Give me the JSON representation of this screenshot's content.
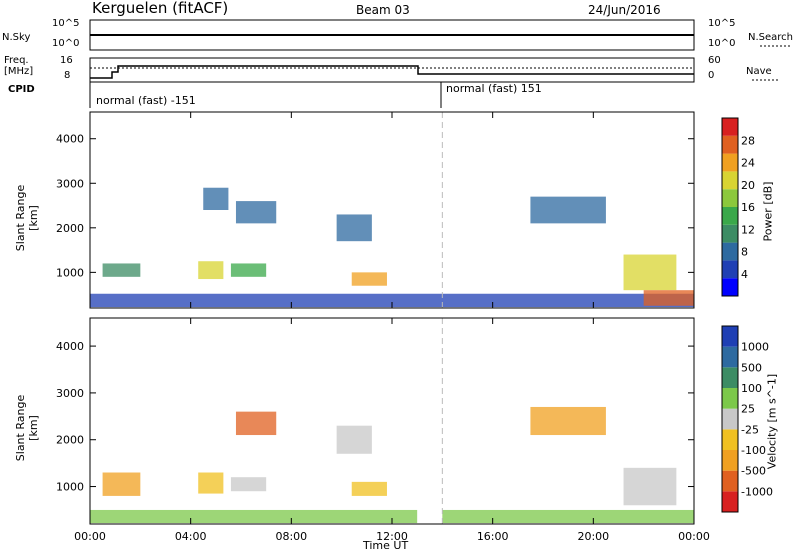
{
  "header": {
    "station": "Kerguelen (fitACF)",
    "beam": "Beam 03",
    "date": "24/Jun/2016"
  },
  "panels": {
    "nsky_label": "N.Sky",
    "nsearch_label": "N.Search",
    "nsky_ticks": [
      "10^5",
      "10^0"
    ],
    "nsearch_ticks": [
      "10^5",
      "10^0"
    ],
    "freq_label": "Freq.",
    "freq_unit": "[MHz]",
    "freq_ticks": [
      "16",
      "8"
    ],
    "nave_label": "Nave",
    "nave_ticks": [
      "60",
      "0"
    ],
    "cpid_label": "CPID",
    "cpid_segments": [
      "normal (fast) -151",
      "normal (fast) 151"
    ]
  },
  "chart_data": [
    {
      "type": "heatmap",
      "title": "",
      "ylabel": "Slant Range [km]",
      "xlabel": "",
      "x_ticks": [
        "00:00",
        "04:00",
        "08:00",
        "12:00",
        "16:00",
        "20:00",
        "00:00"
      ],
      "y_ticks": [
        1000,
        2000,
        3000,
        4000
      ],
      "ylim": [
        200,
        4600
      ],
      "xlim_hours": [
        0,
        24
      ],
      "colorbar": {
        "label": "Power [dB]",
        "ticks": [
          4,
          8,
          12,
          16,
          20,
          24,
          28
        ],
        "range": [
          0,
          32
        ],
        "colors": [
          "#0000ff",
          "#1f3fb4",
          "#2e6aa0",
          "#3c8c64",
          "#3aa84a",
          "#8cc83c",
          "#d8d432",
          "#f0a020",
          "#e06020",
          "#d82020"
        ]
      },
      "regions": [
        {
          "t0": 0.0,
          "t1": 24.0,
          "r0": 220,
          "r1": 520,
          "level": 6
        },
        {
          "t0": 0.5,
          "t1": 2.0,
          "r0": 900,
          "r1": 1200,
          "level": 10
        },
        {
          "t0": 4.3,
          "t1": 5.3,
          "r0": 850,
          "r1": 1250,
          "level": 20
        },
        {
          "t0": 5.6,
          "t1": 7.0,
          "r0": 900,
          "r1": 1200,
          "level": 14
        },
        {
          "t0": 10.4,
          "t1": 11.8,
          "r0": 700,
          "r1": 1000,
          "level": 24
        },
        {
          "t0": 9.8,
          "t1": 11.2,
          "r0": 1700,
          "r1": 2300,
          "level": 8
        },
        {
          "t0": 5.8,
          "t1": 7.4,
          "r0": 2100,
          "r1": 2600,
          "level": 8
        },
        {
          "t0": 4.5,
          "t1": 5.5,
          "r0": 2400,
          "r1": 2900,
          "level": 7
        },
        {
          "t0": 17.5,
          "t1": 20.5,
          "r0": 2100,
          "r1": 2700,
          "level": 8
        },
        {
          "t0": 21.2,
          "t1": 23.3,
          "r0": 600,
          "r1": 1400,
          "level": 20
        },
        {
          "t0": 22.0,
          "t1": 24.0,
          "r0": 250,
          "r1": 600,
          "level": 28
        }
      ]
    },
    {
      "type": "heatmap",
      "title": "",
      "ylabel": "Slant Range [km]",
      "xlabel": "Time UT",
      "x_ticks": [
        "00:00",
        "04:00",
        "08:00",
        "12:00",
        "16:00",
        "20:00",
        "00:00"
      ],
      "y_ticks": [
        1000,
        2000,
        3000,
        4000
      ],
      "ylim": [
        200,
        4600
      ],
      "xlim_hours": [
        0,
        24
      ],
      "colorbar": {
        "label": "Velocity [m s^-1]",
        "ticks": [
          "1000",
          "500",
          "100",
          "25",
          "-25",
          "-100",
          "-500",
          "-1000"
        ],
        "colors": [
          "#1f3fb4",
          "#2e6aa0",
          "#3c8c64",
          "#7cc84a",
          "#c8c8c8",
          "#f0c020",
          "#f0a020",
          "#e06020",
          "#d82020"
        ]
      },
      "regions": [
        {
          "t0": 0.0,
          "t1": 13.0,
          "r0": 220,
          "r1": 500,
          "level": 3
        },
        {
          "t0": 14.0,
          "t1": 24.0,
          "r0": 220,
          "r1": 500,
          "level": 3
        },
        {
          "t0": 0.5,
          "t1": 2.0,
          "r0": 800,
          "r1": 1300,
          "level": 6
        },
        {
          "t0": 4.3,
          "t1": 5.3,
          "r0": 850,
          "r1": 1300,
          "level": 5
        },
        {
          "t0": 5.6,
          "t1": 7.0,
          "r0": 900,
          "r1": 1200,
          "level": 4
        },
        {
          "t0": 10.4,
          "t1": 11.8,
          "r0": 800,
          "r1": 1100,
          "level": 5
        },
        {
          "t0": 9.8,
          "t1": 11.2,
          "r0": 1700,
          "r1": 2300,
          "level": 4
        },
        {
          "t0": 5.8,
          "t1": 7.4,
          "r0": 2100,
          "r1": 2600,
          "level": 7
        },
        {
          "t0": 17.5,
          "t1": 20.5,
          "r0": 2100,
          "r1": 2700,
          "level": 6
        },
        {
          "t0": 21.2,
          "t1": 23.3,
          "r0": 600,
          "r1": 1400,
          "level": 4
        }
      ]
    }
  ]
}
